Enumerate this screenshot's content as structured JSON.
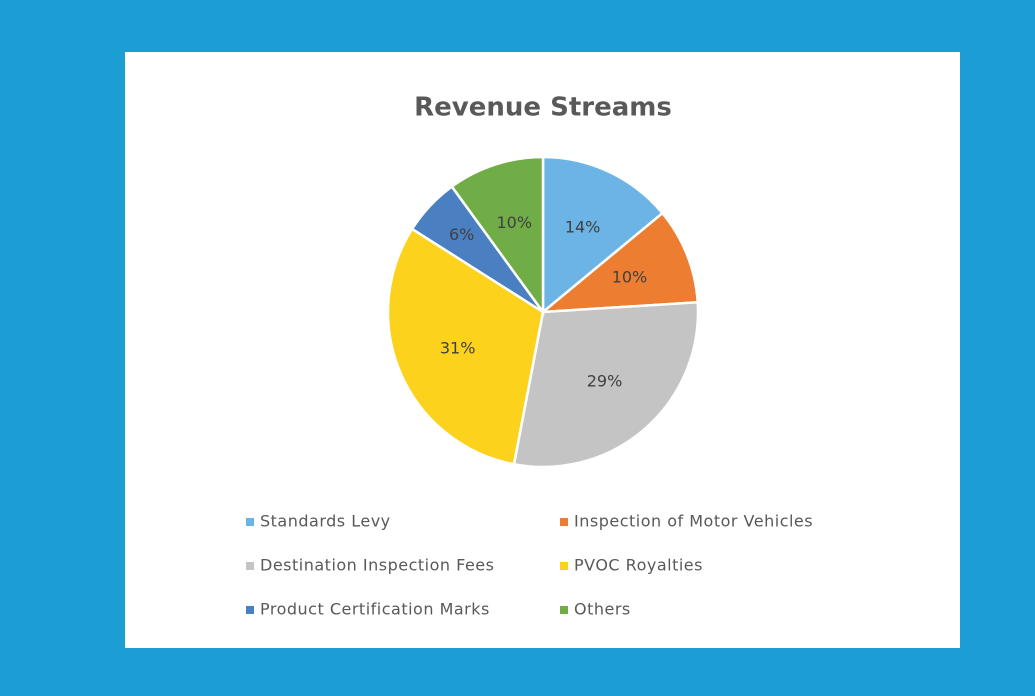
{
  "chart_data": {
    "type": "pie",
    "title": "Revenue Streams",
    "categories": [
      "Standards Levy",
      "Inspection of Motor Vehicles",
      "Destination Inspection Fees",
      "PVOC Royalties",
      "Product Certification Marks",
      "Others"
    ],
    "values": [
      14,
      10,
      29,
      31,
      6,
      10
    ],
    "value_labels": [
      "14%",
      "10%",
      "29%",
      "31%",
      "6%",
      "10%"
    ],
    "colors": [
      "#6cb3e6",
      "#ed7d31",
      "#c4c4c4",
      "#fcd21c",
      "#4a7fc2",
      "#70ad47"
    ],
    "legend": "bottom"
  }
}
